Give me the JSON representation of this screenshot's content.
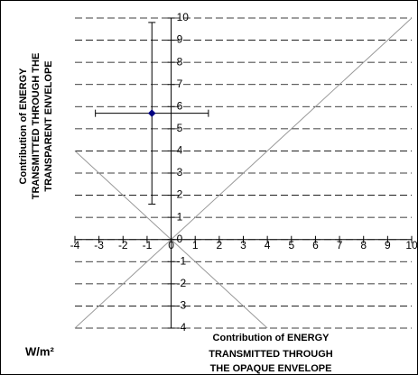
{
  "chart_data": {
    "type": "scatter",
    "x_title": [
      "Contribution of ENERGY",
      "TRANSMITTED THROUGH",
      "THE OPAQUE ENVELOPE"
    ],
    "y_title": [
      "Contribution of ENERGY",
      "TRANSMITTED THROUGH THE",
      "TRANSPARENT ENVELOPE"
    ],
    "unit_label": "W/m²",
    "series": [
      {
        "color": "#000080",
        "x": [
          -0.8
        ],
        "values": [
          5.7
        ],
        "x_errors": [
          2.35
        ],
        "y_errors": [
          4.1
        ]
      }
    ],
    "xlim": [
      -4,
      10
    ],
    "ylim": [
      -4,
      10
    ],
    "xticks": [
      -4,
      -3,
      -2,
      -1,
      0,
      1,
      2,
      3,
      4,
      5,
      6,
      7,
      8,
      9,
      10
    ],
    "yticks": [
      -4,
      -3,
      -2,
      -1,
      0,
      1,
      2,
      3,
      4,
      5,
      6,
      7,
      8,
      9,
      10
    ],
    "grid": true,
    "diagonal_slopes": [
      1,
      -1
    ]
  }
}
